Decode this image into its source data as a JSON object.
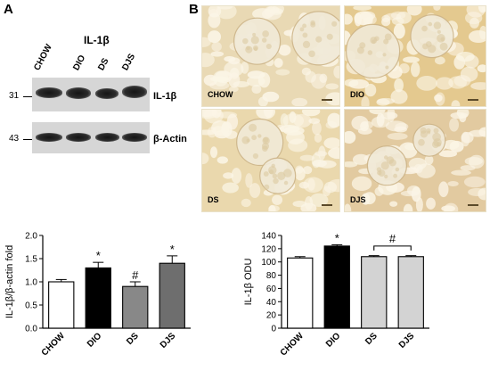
{
  "panel_a": {
    "letter": "A",
    "blot_title": "IL-1β",
    "lanes": [
      "CHOW",
      "DIO",
      "DS",
      "DJS"
    ],
    "markers": [
      "31",
      "43"
    ],
    "proteins": [
      "IL-1β",
      "β-Actin"
    ]
  },
  "panel_b": {
    "letter": "B",
    "tiles": [
      "CHOW",
      "DIO",
      "DS",
      "DJS"
    ],
    "tile_colors": [
      "#e9d9b4",
      "#e4c98f",
      "#ead8ad",
      "#e2caa0"
    ]
  },
  "chart_data": [
    {
      "type": "bar",
      "categories": [
        "CHOW",
        "DIO",
        "DS",
        "DJS"
      ],
      "values": [
        1.0,
        1.3,
        0.9,
        1.4
      ],
      "errors": [
        0.05,
        0.12,
        0.1,
        0.16
      ],
      "bar_colors": [
        "#ffffff",
        "#000000",
        "#888888",
        "#6e6e6e"
      ],
      "annotations": [
        "",
        "*",
        "#",
        "*"
      ],
      "ylabel": "IL-1β/β-actin fold",
      "yticks": [
        "0.0",
        "0.5",
        "1.0",
        "1.5",
        "2.0"
      ],
      "ylim": [
        0,
        2.0
      ],
      "grid": false
    },
    {
      "type": "bar",
      "categories": [
        "CHOW",
        "DIO",
        "DS",
        "DJS"
      ],
      "values": [
        106,
        124,
        108,
        108
      ],
      "errors": [
        2,
        2,
        1.5,
        1.5
      ],
      "bar_colors": [
        "#ffffff",
        "#000000",
        "#d3d3d3",
        "#d3d3d3"
      ],
      "annotations": [
        "",
        "*",
        "",
        ""
      ],
      "bracket_label": "#",
      "ylabel": "IL-1β ODU",
      "yticks": [
        "0",
        "20",
        "40",
        "60",
        "80",
        "100",
        "120",
        "140"
      ],
      "ylim": [
        0,
        140
      ],
      "grid": false
    }
  ]
}
